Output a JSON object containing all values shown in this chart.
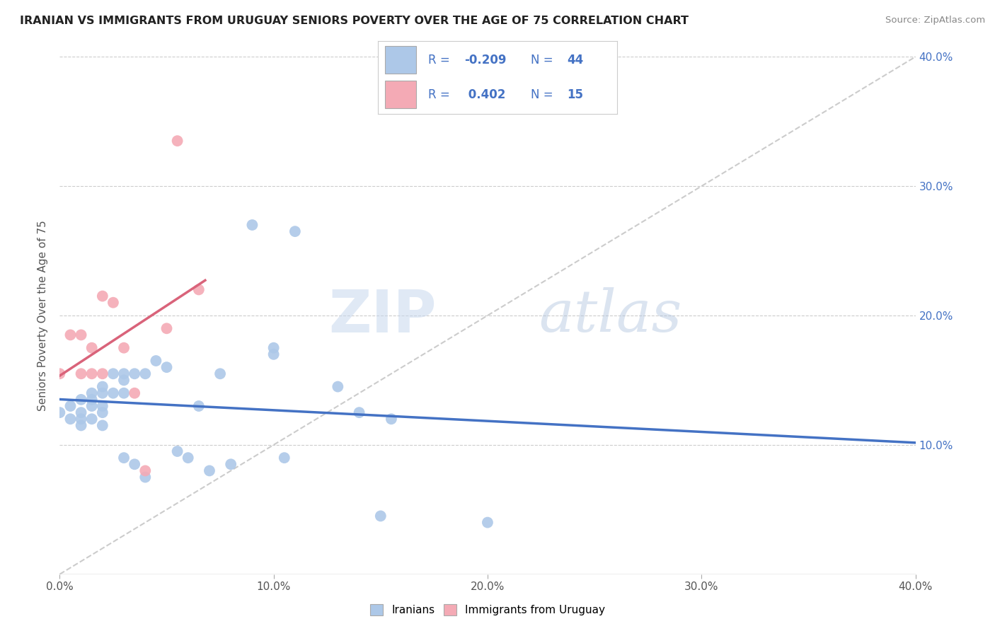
{
  "title": "IRANIAN VS IMMIGRANTS FROM URUGUAY SENIORS POVERTY OVER THE AGE OF 75 CORRELATION CHART",
  "source": "Source: ZipAtlas.com",
  "ylabel": "Seniors Poverty Over the Age of 75",
  "xlim": [
    0.0,
    0.4
  ],
  "ylim": [
    0.0,
    0.4
  ],
  "x_ticks": [
    0.0,
    0.1,
    0.2,
    0.3,
    0.4
  ],
  "y_ticks": [
    0.1,
    0.2,
    0.3,
    0.4
  ],
  "x_tick_labels": [
    "0.0%",
    "10.0%",
    "20.0%",
    "30.0%",
    "40.0%"
  ],
  "y_tick_labels_right": [
    "10.0%",
    "20.0%",
    "30.0%",
    "40.0%"
  ],
  "iranians_R": -0.209,
  "iranians_N": 44,
  "uruguay_R": 0.402,
  "uruguay_N": 15,
  "iranians_color": "#adc8e8",
  "uruguay_color": "#f4aab5",
  "iranians_line_color": "#4472c4",
  "uruguay_line_color": "#d9637a",
  "legend_iranians_label": "Iranians",
  "legend_uruguay_label": "Immigrants from Uruguay",
  "watermark_zip": "ZIP",
  "watermark_atlas": "atlas",
  "iranians_x": [
    0.0,
    0.005,
    0.005,
    0.01,
    0.01,
    0.01,
    0.01,
    0.015,
    0.015,
    0.015,
    0.015,
    0.02,
    0.02,
    0.02,
    0.02,
    0.02,
    0.025,
    0.025,
    0.03,
    0.03,
    0.03,
    0.03,
    0.035,
    0.035,
    0.04,
    0.04,
    0.045,
    0.05,
    0.055,
    0.06,
    0.065,
    0.07,
    0.075,
    0.08,
    0.09,
    0.1,
    0.1,
    0.105,
    0.11,
    0.13,
    0.14,
    0.15,
    0.155,
    0.2
  ],
  "iranians_y": [
    0.125,
    0.13,
    0.12,
    0.135,
    0.125,
    0.12,
    0.115,
    0.14,
    0.135,
    0.13,
    0.12,
    0.145,
    0.14,
    0.13,
    0.125,
    0.115,
    0.155,
    0.14,
    0.155,
    0.15,
    0.14,
    0.09,
    0.155,
    0.085,
    0.155,
    0.075,
    0.165,
    0.16,
    0.095,
    0.09,
    0.13,
    0.08,
    0.155,
    0.085,
    0.27,
    0.175,
    0.17,
    0.09,
    0.265,
    0.145,
    0.125,
    0.045,
    0.12,
    0.04
  ],
  "uruguay_x": [
    0.0,
    0.005,
    0.01,
    0.01,
    0.015,
    0.015,
    0.02,
    0.02,
    0.025,
    0.03,
    0.035,
    0.04,
    0.05,
    0.055,
    0.065
  ],
  "uruguay_y": [
    0.155,
    0.185,
    0.185,
    0.155,
    0.175,
    0.155,
    0.215,
    0.155,
    0.21,
    0.175,
    0.14,
    0.08,
    0.19,
    0.335,
    0.22
  ]
}
